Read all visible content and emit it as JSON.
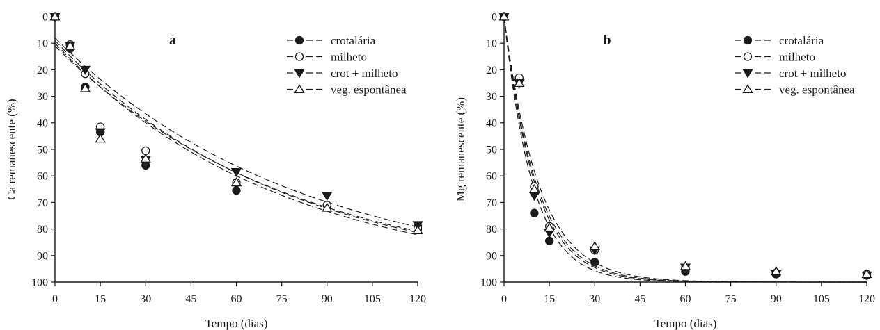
{
  "chart_data": [
    {
      "type": "scatter",
      "panel_label": "a",
      "xlabel": "Tempo (dias)",
      "ylabel": "Ca remanescente (%)",
      "xlim": [
        0,
        120
      ],
      "ylim": [
        0,
        100
      ],
      "y_inverted": true,
      "xticks": [
        0,
        15,
        30,
        45,
        60,
        75,
        90,
        105,
        120
      ],
      "yticks": [
        0,
        10,
        20,
        30,
        40,
        50,
        60,
        70,
        80,
        90,
        100
      ],
      "legend_position": "top-right",
      "grid": false,
      "fit_curve": "exponential decay (one dashed curve per series)",
      "x": [
        0,
        5,
        10,
        15,
        30,
        60,
        90,
        120
      ],
      "series": [
        {
          "name": "crotalária",
          "marker": "filled-circle",
          "values": [
            0,
            12,
            26.5,
            43.5,
            56,
            65.5,
            71,
            79
          ],
          "fit": {
            "a": 9,
            "k": 0.0132
          }
        },
        {
          "name": "milheto",
          "marker": "open-circle",
          "values": [
            0,
            10.5,
            21.5,
            41.5,
            50.5,
            62.5,
            71,
            80
          ],
          "fit": {
            "a": 11,
            "k": 0.0128
          }
        },
        {
          "name": "crot + milheto",
          "marker": "filled-triangle-down",
          "values": [
            0,
            11,
            20,
            43.5,
            54,
            58.5,
            67.5,
            78.5
          ],
          "fit": {
            "a": 8,
            "k": 0.0124
          }
        },
        {
          "name": "veg. espontânea",
          "marker": "open-triangle-up",
          "values": [
            0,
            11,
            27,
            46,
            53.5,
            62.5,
            72,
            80.5
          ],
          "fit": {
            "a": 10,
            "k": 0.0135
          }
        }
      ]
    },
    {
      "type": "scatter",
      "panel_label": "b",
      "xlabel": "Tempo (dias)",
      "ylabel": "Mg remanescente (%)",
      "xlim": [
        0,
        120
      ],
      "ylim": [
        0,
        100
      ],
      "y_inverted": true,
      "xticks": [
        0,
        15,
        30,
        45,
        60,
        75,
        90,
        105,
        120
      ],
      "yticks": [
        0,
        10,
        20,
        30,
        40,
        50,
        60,
        70,
        80,
        90,
        100
      ],
      "legend_position": "top-right",
      "grid": false,
      "fit_curve": "exponential decay (one dashed curve per series)",
      "x": [
        0,
        5,
        10,
        15,
        30,
        60,
        90,
        120
      ],
      "series": [
        {
          "name": "crotalária",
          "marker": "filled-circle",
          "values": [
            0,
            23.5,
            74,
            84.5,
            92.5,
            96,
            97,
            97.5
          ],
          "fit": {
            "a": 0,
            "k": 0.105
          }
        },
        {
          "name": "milheto",
          "marker": "open-circle",
          "values": [
            0,
            23,
            64,
            79,
            88,
            94.5,
            96.5,
            97
          ],
          "fit": {
            "a": 0,
            "k": 0.093
          }
        },
        {
          "name": "crot + milheto",
          "marker": "filled-triangle-down",
          "values": [
            0,
            25,
            67.5,
            81.5,
            88,
            94.5,
            97,
            97.5
          ],
          "fit": {
            "a": 0,
            "k": 0.097
          }
        },
        {
          "name": "veg. espontânea",
          "marker": "open-triangle-up",
          "values": [
            0,
            25,
            65,
            79.5,
            86.5,
            94,
            96,
            97
          ],
          "fit": {
            "a": 0,
            "k": 0.087
          }
        }
      ]
    }
  ]
}
